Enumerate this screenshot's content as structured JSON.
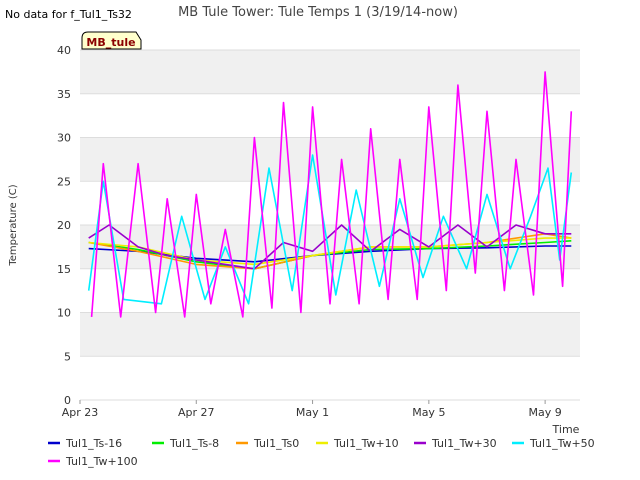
{
  "header": {
    "no_data_note": "No data for f_Tul1_Ts32"
  },
  "chart_data": {
    "type": "line",
    "title": "MB Tule Tower: Tule Temps 1 (3/19/14-now)",
    "xlabel": "Time",
    "ylabel": "Temperature (C)",
    "ylim": [
      0,
      40
    ],
    "xlim_days": [
      0,
      17.2
    ],
    "y_ticks": [
      0,
      5,
      10,
      15,
      20,
      25,
      30,
      35,
      40
    ],
    "x_ticks": [
      {
        "label": "Apr 23",
        "day": 0
      },
      {
        "label": "Apr 27",
        "day": 4
      },
      {
        "label": "May 1",
        "day": 8
      },
      {
        "label": "May 5",
        "day": 12
      },
      {
        "label": "May 9",
        "day": 16
      }
    ],
    "grid": "horizontal alternating bands",
    "site_badge": "MB_tule",
    "series": [
      {
        "name": "Tul1_Ts-16",
        "color": "#0000cc",
        "x": [
          0.3,
          2,
          4,
          6,
          8,
          10,
          12,
          14,
          16,
          16.9
        ],
        "values": [
          17.3,
          17.0,
          16.2,
          15.8,
          16.5,
          17.0,
          17.3,
          17.4,
          17.6,
          17.6
        ]
      },
      {
        "name": "Tul1_Ts-8",
        "color": "#00ee00",
        "x": [
          0.3,
          2,
          4,
          6,
          8,
          10,
          12,
          14,
          16,
          16.9
        ],
        "values": [
          18.0,
          17.2,
          15.8,
          15.0,
          16.5,
          17.2,
          17.3,
          17.6,
          18.0,
          18.2
        ]
      },
      {
        "name": "Tul1_Ts0",
        "color": "#ff9900",
        "x": [
          0.3,
          2,
          4,
          6,
          8,
          10,
          12,
          14,
          16,
          16.9
        ],
        "values": [
          18.0,
          17.0,
          15.5,
          15.0,
          16.5,
          17.5,
          17.5,
          18.0,
          19.0,
          18.5
        ]
      },
      {
        "name": "Tul1_Tw+10",
        "color": "#eeee00",
        "x": [
          0.3,
          2,
          4,
          6,
          8,
          10,
          12,
          14,
          16,
          16.9
        ],
        "values": [
          18.0,
          17.5,
          16.0,
          15.5,
          16.5,
          17.5,
          17.5,
          18.0,
          18.5,
          18.5
        ]
      },
      {
        "name": "Tul1_Tw+30",
        "color": "#9900cc",
        "x": [
          0.3,
          1,
          2,
          3,
          4,
          5,
          6,
          7,
          8,
          9,
          10,
          11,
          12,
          13,
          14,
          15,
          16,
          16.9
        ],
        "values": [
          18.5,
          20.0,
          17.5,
          16.5,
          16.0,
          15.5,
          15.0,
          18.0,
          17.0,
          20.0,
          17.0,
          19.5,
          17.5,
          20.0,
          17.5,
          20.0,
          19.0,
          19.0
        ]
      },
      {
        "name": "Tul1_Tw+50",
        "color": "#00eeff",
        "x": [
          0.3,
          0.8,
          1.5,
          2.8,
          3.5,
          4.3,
          5.0,
          5.8,
          6.5,
          7.3,
          8.0,
          8.8,
          9.5,
          10.3,
          11.0,
          11.8,
          12.5,
          13.3,
          14.0,
          14.8,
          15.5,
          16.1,
          16.5,
          16.9
        ],
        "values": [
          12.5,
          25.0,
          11.5,
          11.0,
          21.0,
          11.5,
          17.5,
          11.0,
          26.5,
          12.5,
          28.0,
          12.0,
          24.0,
          13.0,
          23.0,
          14.0,
          21.0,
          15.0,
          23.5,
          15.0,
          21.0,
          26.5,
          16.0,
          26.0
        ]
      },
      {
        "name": "Tul1_Tw+100",
        "color": "#ff00ff",
        "x": [
          0.4,
          0.8,
          1.4,
          2.0,
          2.6,
          3.0,
          3.6,
          4.0,
          4.5,
          5.0,
          5.6,
          6.0,
          6.6,
          7.0,
          7.6,
          8.0,
          8.6,
          9.0,
          9.6,
          10.0,
          10.6,
          11.0,
          11.6,
          12.0,
          12.6,
          13.0,
          13.6,
          14.0,
          14.6,
          15.0,
          15.6,
          16.0,
          16.6,
          16.9
        ],
        "values": [
          9.5,
          27.0,
          9.5,
          27.0,
          10.0,
          23.0,
          9.5,
          23.5,
          11.0,
          19.5,
          9.5,
          30.0,
          10.5,
          34.0,
          10.0,
          33.5,
          11.0,
          27.5,
          11.0,
          31.0,
          11.5,
          27.5,
          11.5,
          33.5,
          12.5,
          36.0,
          14.5,
          33.0,
          12.5,
          27.5,
          12.0,
          37.5,
          13.0,
          33.0
        ]
      }
    ]
  }
}
